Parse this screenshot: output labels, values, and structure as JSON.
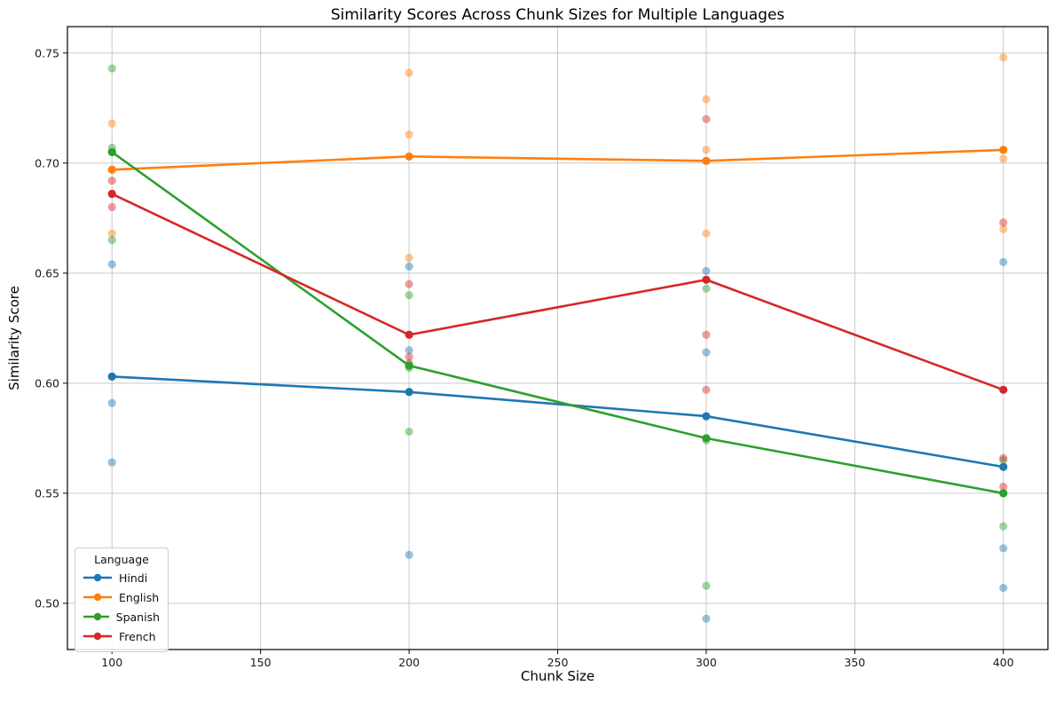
{
  "chart_data": {
    "type": "line",
    "title": "Similarity Scores Across Chunk Sizes for Multiple Languages",
    "xlabel": "Chunk Size",
    "ylabel": "Similarity Score",
    "legend_title": "Language",
    "legend_position": "lower left",
    "grid": true,
    "x": [
      100,
      200,
      300,
      400
    ],
    "xticks": [
      "100",
      "150",
      "200",
      "250",
      "300",
      "350",
      "400"
    ],
    "yticks": [
      "0.50",
      "0.55",
      "0.60",
      "0.65",
      "0.70",
      "0.75"
    ],
    "xlim": [
      85,
      415
    ],
    "ylim": [
      0.479,
      0.762
    ],
    "scatter_alpha": 0.45,
    "series": [
      {
        "name": "Hindi",
        "color": "#1f77b4",
        "means": [
          0.603,
          0.596,
          0.585,
          0.562
        ],
        "scatter": [
          [
            0.654,
            0.591,
            0.564
          ],
          [
            0.653,
            0.615,
            0.522
          ],
          [
            0.651,
            0.614,
            0.493
          ],
          [
            0.655,
            0.525,
            0.507
          ]
        ]
      },
      {
        "name": "English",
        "color": "#ff7f0e",
        "means": [
          0.697,
          0.703,
          0.701,
          0.706
        ],
        "scatter": [
          [
            0.718,
            0.705,
            0.668
          ],
          [
            0.741,
            0.713,
            0.657
          ],
          [
            0.729,
            0.706,
            0.668
          ],
          [
            0.748,
            0.702,
            0.67
          ]
        ]
      },
      {
        "name": "Spanish",
        "color": "#2ca02c",
        "means": [
          0.705,
          0.608,
          0.575,
          0.55
        ],
        "scatter": [
          [
            0.743,
            0.707,
            0.665
          ],
          [
            0.64,
            0.607,
            0.578
          ],
          [
            0.643,
            0.574,
            0.508
          ],
          [
            0.565,
            0.55,
            0.535
          ]
        ]
      },
      {
        "name": "French",
        "color": "#d62728",
        "means": [
          0.686,
          0.622,
          0.647,
          0.597
        ],
        "scatter": [
          [
            0.692,
            0.686,
            0.68
          ],
          [
            0.645,
            0.612,
            0.609
          ],
          [
            0.72,
            0.622,
            0.597
          ],
          [
            0.673,
            0.566,
            0.553
          ]
        ]
      }
    ]
  }
}
